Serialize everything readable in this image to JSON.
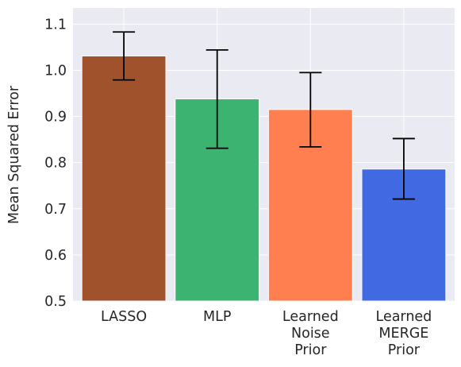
{
  "chart_data": {
    "type": "bar",
    "categories": [
      "LASSO",
      "MLP",
      "Learned\nNoise\nPrior",
      "Learned\nMERGE\nPrior"
    ],
    "values": [
      1.031,
      0.938,
      0.915,
      0.786
    ],
    "error_low": [
      0.979,
      0.831,
      0.834,
      0.721
    ],
    "error_high": [
      1.083,
      1.044,
      0.995,
      0.852
    ],
    "colors": [
      "#A0522D",
      "#3CB371",
      "#FF7F50",
      "#4169E1"
    ],
    "title": "",
    "xlabel": "",
    "ylabel": "Mean Squared Error",
    "ylim": [
      0.5,
      1.135
    ],
    "yticks": [
      0.5,
      0.6,
      0.7,
      0.8,
      0.9,
      1.0,
      1.1
    ],
    "ytick_labels": [
      "0.5",
      "0.6",
      "0.7",
      "0.8",
      "0.9",
      "1.0",
      "1.1"
    ],
    "grid": true,
    "background": "#EAEAF2",
    "grid_color": "#FFFFFF",
    "errorbar_color": "#000000"
  }
}
